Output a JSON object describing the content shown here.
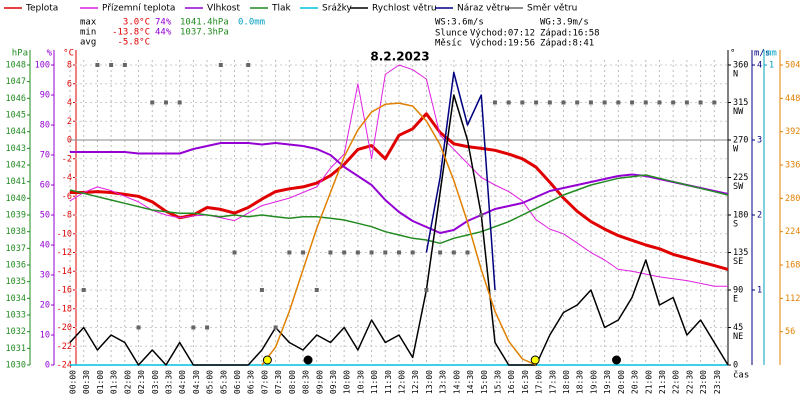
{
  "chart_data": {
    "type": "line",
    "title": "8.2.2023",
    "x_label": "čas",
    "xlim": [
      0,
      24
    ],
    "xticks": [
      {
        "value": 0,
        "label": "00:00"
      },
      {
        "value": 0.5,
        "label": "00:30"
      },
      {
        "value": 1,
        "label": "01:00"
      },
      {
        "value": 1.5,
        "label": "01:30"
      },
      {
        "value": 2,
        "label": "02:00"
      },
      {
        "value": 2.5,
        "label": "02:30"
      },
      {
        "value": 3,
        "label": "03:00"
      },
      {
        "value": 3.5,
        "label": "03:30"
      },
      {
        "value": 4,
        "label": "04:00"
      },
      {
        "value": 4.5,
        "label": "04:30"
      },
      {
        "value": 5,
        "label": "05:00"
      },
      {
        "value": 5.5,
        "label": "05:30"
      },
      {
        "value": 6,
        "label": "06:00"
      },
      {
        "value": 6.5,
        "label": "06:30"
      },
      {
        "value": 7,
        "label": "07:00"
      },
      {
        "value": 7.5,
        "label": "07:30"
      },
      {
        "value": 8,
        "label": "08:00"
      },
      {
        "value": 8.5,
        "label": "08:30"
      },
      {
        "value": 9,
        "label": "09:00"
      },
      {
        "value": 9.5,
        "label": "09:30"
      },
      {
        "value": 10,
        "label": "10:00"
      },
      {
        "value": 10.5,
        "label": "10:30"
      },
      {
        "value": 11,
        "label": "11:00"
      },
      {
        "value": 11.5,
        "label": "11:30"
      },
      {
        "value": 12,
        "label": "12:00"
      },
      {
        "value": 12.5,
        "label": "12:30"
      },
      {
        "value": 13,
        "label": "13:00"
      },
      {
        "value": 13.5,
        "label": "13:30"
      },
      {
        "value": 14,
        "label": "14:00"
      },
      {
        "value": 14.5,
        "label": "14:30"
      },
      {
        "value": 15,
        "label": "15:00"
      },
      {
        "value": 15.5,
        "label": "15:30"
      },
      {
        "value": 16,
        "label": "16:00"
      },
      {
        "value": 16.5,
        "label": "16:30"
      },
      {
        "value": 17,
        "label": "17:00"
      },
      {
        "value": 17.5,
        "label": "17:30"
      },
      {
        "value": 18,
        "label": "18:00"
      },
      {
        "value": 18.5,
        "label": "18:30"
      },
      {
        "value": 19,
        "label": "19:00"
      },
      {
        "value": 19.5,
        "label": "19:30"
      },
      {
        "value": 20,
        "label": "20:00"
      },
      {
        "value": 20.5,
        "label": "20:30"
      },
      {
        "value": 21,
        "label": "21:00"
      },
      {
        "value": 21.5,
        "label": "21:30"
      },
      {
        "value": 22,
        "label": "22:00"
      },
      {
        "value": 22.5,
        "label": "22:30"
      },
      {
        "value": 23,
        "label": "23:00"
      },
      {
        "value": 23.5,
        "label": "23:30"
      }
    ],
    "grid": true,
    "y_axes": [
      {
        "name": "hPa",
        "color": "#228b22",
        "ylim": [
          1030,
          1048
        ],
        "yticks": [
          1048,
          1047,
          1046,
          1045,
          1044,
          1043,
          1042,
          1041,
          1040,
          1039,
          1038,
          1037,
          1036,
          1035,
          1034,
          1033,
          1032,
          1031,
          1030
        ]
      },
      {
        "name": "%",
        "color": "#9400d3",
        "ylim": [
          0,
          100
        ],
        "yticks": [
          100,
          90,
          80,
          70,
          60,
          50,
          40,
          30,
          20,
          10,
          0
        ]
      },
      {
        "name": "°C",
        "color": "#e00000",
        "ylim": [
          -24,
          8
        ],
        "yticks": [
          8,
          6,
          4,
          2,
          0,
          -2,
          -4,
          -6,
          -8,
          -10,
          -12,
          -14,
          -16,
          -18,
          -20,
          -22,
          -24
        ]
      },
      {
        "name": "°",
        "color": "#000000",
        "ylim": [
          0,
          360
        ],
        "yticks": [
          360,
          315,
          270,
          225,
          180,
          135,
          90,
          45,
          0
        ],
        "compass": [
          "N",
          "NW",
          "W",
          "SW",
          "S",
          "SE",
          "E",
          "NE",
          null
        ]
      },
      {
        "name": "m/s",
        "color": "#000080",
        "ylim": [
          0,
          4
        ],
        "yticks": [
          4,
          3,
          2,
          1
        ]
      },
      {
        "name": "mm",
        "color": "#00a0c0",
        "ylim": [
          0,
          1
        ],
        "yticks": [
          1
        ]
      },
      {
        "color": "#e08000",
        "ylim": [
          0,
          504
        ],
        "yticks": [
          504,
          448,
          392,
          336,
          280,
          224,
          168,
          112,
          56
        ]
      }
    ],
    "x": [
      0,
      0.5,
      1,
      1.5,
      2,
      2.5,
      3,
      3.5,
      4,
      4.5,
      5,
      5.5,
      6,
      6.5,
      7,
      7.5,
      8,
      8.5,
      9,
      9.5,
      10,
      10.5,
      11,
      11.5,
      12,
      12.5,
      13,
      13.5,
      14,
      14.5,
      15,
      15.5,
      16,
      16.5,
      17,
      17.5,
      18,
      18.5,
      19,
      19.5,
      20,
      20.5,
      21,
      21.5,
      22,
      22.5,
      23,
      23.5,
      24
    ],
    "series": [
      {
        "name": "Teplota",
        "color": "#e00000",
        "axis": 2,
        "values": [
          -5.6,
          -5.6,
          -5.5,
          -5.6,
          -5.8,
          -6.0,
          -6.6,
          -7.6,
          -8.3,
          -8.0,
          -7.2,
          -7.4,
          -7.8,
          -7.2,
          -6.3,
          -5.5,
          -5.2,
          -5.0,
          -4.6,
          -3.8,
          -2.6,
          -1.0,
          -0.6,
          -2.0,
          0.5,
          1.2,
          2.8,
          0.8,
          -0.4,
          -0.7,
          -0.9,
          -1.1,
          -1.5,
          -2.0,
          -2.9,
          -4.5,
          -6.2,
          -7.6,
          -8.7,
          -9.5,
          -10.2,
          -10.7,
          -11.2,
          -11.6,
          -12.2,
          -12.6,
          -13.0,
          -13.4,
          -13.8
        ]
      },
      {
        "name": "Přízemní teplota",
        "color": "#e020e0",
        "axis": 2,
        "values": [
          -6.5,
          -5.6,
          -5.0,
          -5.4,
          -6.0,
          -6.6,
          -7.5,
          -8.0,
          -8.3,
          -8.1,
          -8.0,
          -8.3,
          -8.6,
          -7.8,
          -7.0,
          -6.6,
          -6.2,
          -5.6,
          -5.0,
          -3.0,
          -1.5,
          6.0,
          -2.0,
          7.0,
          8.0,
          7.5,
          6.5,
          0.5,
          -1.0,
          -2.5,
          -4.0,
          -4.8,
          -5.5,
          -6.5,
          -8.5,
          -9.5,
          -10.0,
          -11.0,
          -12.0,
          -12.8,
          -13.8,
          -14.0,
          -14.3,
          -14.6,
          -14.8,
          -15.0,
          -15.3,
          -15.6,
          -15.6
        ]
      },
      {
        "name": "Vlhkost",
        "color": "#9400d3",
        "axis": 1,
        "values": [
          71,
          71,
          71,
          71,
          71,
          70.5,
          70.5,
          70.5,
          70.5,
          72,
          73,
          74,
          74,
          74,
          73.5,
          74,
          73.5,
          73,
          72,
          70,
          66,
          63,
          60,
          55,
          51,
          48,
          46,
          44,
          45,
          48,
          50,
          52,
          53,
          54,
          56,
          58,
          59,
          60,
          61,
          62,
          63,
          63.5,
          63,
          62,
          61,
          60,
          59,
          58,
          57
        ]
      },
      {
        "name": "Tlak",
        "color": "#228b22",
        "axis": 0,
        "values": [
          1040.5,
          1040.3,
          1040.1,
          1039.9,
          1039.7,
          1039.5,
          1039.3,
          1039.2,
          1039.1,
          1039.1,
          1039.0,
          1038.9,
          1039.0,
          1038.9,
          1039.0,
          1038.9,
          1038.8,
          1038.9,
          1038.9,
          1038.8,
          1038.7,
          1038.5,
          1038.3,
          1038.0,
          1037.8,
          1037.6,
          1037.5,
          1037.3,
          1037.6,
          1037.8,
          1038.0,
          1038.3,
          1038.6,
          1039.0,
          1039.4,
          1039.8,
          1040.2,
          1040.5,
          1040.8,
          1041.0,
          1041.2,
          1041.3,
          1041.4,
          1041.2,
          1041.0,
          1040.8,
          1040.6,
          1040.4,
          1040.2
        ]
      },
      {
        "name": "Srážky",
        "color": "#00c0e0",
        "axis": 5,
        "values": [
          0,
          0,
          0,
          0,
          0,
          0,
          0,
          0,
          0,
          0,
          0,
          0,
          0,
          0,
          0,
          0,
          0,
          0,
          0,
          0,
          0,
          0,
          0,
          0,
          0,
          0,
          0,
          0,
          0,
          0,
          0,
          0,
          0,
          0,
          0,
          0,
          0,
          0,
          0,
          0,
          0,
          0,
          0,
          0,
          0,
          0,
          0,
          0,
          0
        ]
      },
      {
        "name": "Rychlost větru",
        "color": "#000000",
        "axis": 4,
        "values": [
          0.3,
          0.5,
          0.2,
          0.4,
          0.3,
          0,
          0.2,
          0,
          0.3,
          0,
          0,
          0,
          0,
          0,
          0.2,
          0.5,
          0.3,
          0.2,
          0.4,
          0.3,
          0.5,
          0.2,
          0.6,
          0.3,
          0.4,
          0.1,
          1.0,
          2.3,
          3.6,
          3.0,
          2.0,
          0.3,
          0,
          0,
          0,
          0.4,
          0.7,
          0.8,
          1.0,
          0.5,
          0.6,
          0.9,
          1.4,
          0.8,
          0.9,
          0.4,
          0.6,
          0.3,
          0
        ]
      },
      {
        "name": "Náraz větru",
        "color": "#000080",
        "axis": 4,
        "values": [
          null,
          null,
          null,
          null,
          null,
          null,
          null,
          null,
          null,
          null,
          null,
          null,
          null,
          null,
          null,
          null,
          null,
          null,
          null,
          null,
          null,
          null,
          null,
          null,
          null,
          null,
          1.5,
          2.5,
          3.9,
          3.2,
          3.6,
          1.0,
          null,
          null,
          null,
          null,
          null,
          null,
          null,
          null,
          null,
          null,
          null,
          null,
          null,
          null,
          null,
          null,
          null
        ]
      },
      {
        "name": "Směr větru",
        "color": "#666666",
        "axis": 3,
        "type": "scatter",
        "values": [
          null,
          90,
          360,
          360,
          360,
          45,
          315,
          315,
          315,
          45,
          45,
          360,
          135,
          360,
          90,
          45,
          135,
          135,
          90,
          135,
          135,
          135,
          135,
          135,
          135,
          135,
          90,
          135,
          135,
          135,
          180,
          315,
          315,
          315,
          315,
          315,
          315,
          315,
          315,
          315,
          315,
          315,
          315,
          315,
          315,
          315,
          315,
          315,
          null
        ]
      },
      {
        "color": "#e08000",
        "axis": 6,
        "values": [
          null,
          null,
          null,
          null,
          null,
          null,
          null,
          null,
          null,
          null,
          null,
          null,
          null,
          null,
          0,
          30,
          90,
          160,
          230,
          290,
          350,
          395,
          425,
          438,
          440,
          435,
          410,
          370,
          310,
          240,
          160,
          90,
          40,
          10,
          0,
          null,
          null,
          null,
          null,
          null,
          null,
          null,
          null,
          null,
          null,
          null,
          null,
          null,
          null
        ]
      }
    ],
    "stats": {
      "labels": [
        "max",
        "min",
        "avg"
      ],
      "temp": [
        "3.0°C",
        "-13.8°C",
        "-5.8°C"
      ],
      "hum": [
        "74%",
        "44%"
      ],
      "pres": [
        "1041.4hPa",
        "1037.3hPa"
      ],
      "rain": [
        "0.0mm"
      ]
    },
    "info": {
      "ws": "WS:3.6m/s",
      "wg": "WG:3.9m/s",
      "sun": "Slunce",
      "sun_rise": "Východ:07:12",
      "sun_set": "Západ:16:58",
      "moon": "Měsíc",
      "moon_rise": "Východ:19:56",
      "moon_set": "Západ:8:41"
    }
  }
}
